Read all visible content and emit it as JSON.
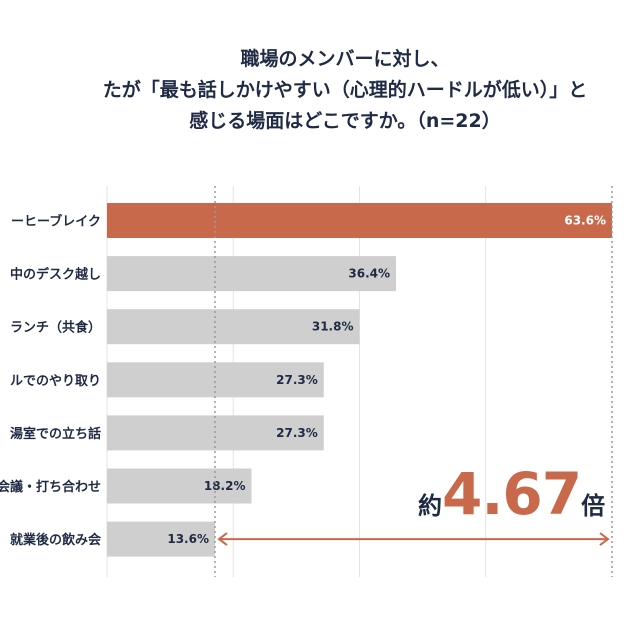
{
  "title": {
    "line1": "職場のメンバーに対し、",
    "line2": "たが「最も話しかけやすい（心理的ハードルが低い）」と",
    "line3": "感じる場面はどこですか。（n=22）"
  },
  "colors": {
    "highlight": "#c9694b",
    "bar": "#d0cfcf",
    "text": "#1f2a44",
    "grid": "#e3e3e3"
  },
  "chart_data": {
    "type": "bar",
    "orientation": "horizontal",
    "categories": [
      "ーヒーブレイク",
      "中のデスク越し",
      "ランチ（共食）",
      "ルでのやり取り",
      "湯室での立ち話",
      "会議・打ち合わせ",
      "就業後の飲み会"
    ],
    "values": [
      63.6,
      36.4,
      31.8,
      27.3,
      27.3,
      18.2,
      13.6
    ],
    "value_labels": [
      "63.6%",
      "36.4%",
      "31.8%",
      "27.3%",
      "27.3%",
      "18.2%",
      "13.6%"
    ],
    "highlight_index": 0,
    "xlim": [
      0,
      63.6
    ],
    "grid": true,
    "annotation": {
      "prefix": "約",
      "value": "4.67",
      "suffix": "倍",
      "from_value": 13.6,
      "to_value": 63.6
    }
  }
}
